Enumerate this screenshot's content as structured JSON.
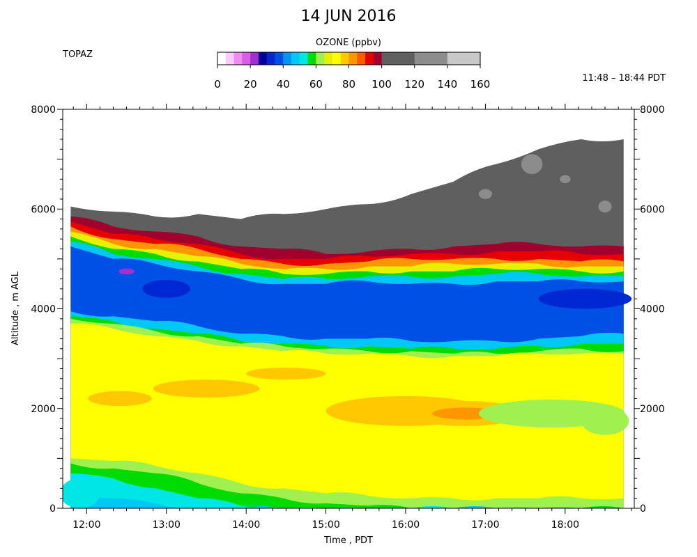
{
  "chart_data": {
    "type": "heatmap",
    "title": "14 JUN 2016",
    "instrument": "TOPAZ",
    "time_range": "11:48 – 18:44 PDT",
    "colorbar": {
      "label": "OZONE (ppbv)",
      "ticks": [
        "0",
        "20",
        "40",
        "60",
        "80",
        "100",
        "120",
        "140",
        "160"
      ],
      "range": [
        0,
        160
      ],
      "segments": [
        {
          "from": 0,
          "to": 5,
          "color": "#ffffff"
        },
        {
          "from": 5,
          "to": 10,
          "color": "#ffc8ff"
        },
        {
          "from": 10,
          "to": 15,
          "color": "#f08cf0"
        },
        {
          "from": 15,
          "to": 20,
          "color": "#d75fe6"
        },
        {
          "from": 20,
          "to": 25,
          "color": "#a030d0"
        },
        {
          "from": 25,
          "to": 30,
          "color": "#00009b"
        },
        {
          "from": 30,
          "to": 35,
          "color": "#0028d2"
        },
        {
          "from": 35,
          "to": 40,
          "color": "#0050e6"
        },
        {
          "from": 40,
          "to": 45,
          "color": "#0096f0"
        },
        {
          "from": 45,
          "to": 50,
          "color": "#00c8f5"
        },
        {
          "from": 50,
          "to": 55,
          "color": "#00e6e6"
        },
        {
          "from": 55,
          "to": 60,
          "color": "#00dc00"
        },
        {
          "from": 60,
          "to": 65,
          "color": "#a0f050"
        },
        {
          "from": 65,
          "to": 70,
          "color": "#e6f000"
        },
        {
          "from": 70,
          "to": 75,
          "color": "#ffff00"
        },
        {
          "from": 75,
          "to": 80,
          "color": "#ffc800"
        },
        {
          "from": 80,
          "to": 85,
          "color": "#ff9600"
        },
        {
          "from": 85,
          "to": 90,
          "color": "#ff5a00"
        },
        {
          "from": 90,
          "to": 95,
          "color": "#e60000"
        },
        {
          "from": 95,
          "to": 100,
          "color": "#a0002d"
        },
        {
          "from": 100,
          "to": 120,
          "color": "#5f5f5f"
        },
        {
          "from": 120,
          "to": 140,
          "color": "#8c8c8c"
        },
        {
          "from": 140,
          "to": 160,
          "color": "#c8c8c8"
        }
      ]
    },
    "xlabel": "Time , PDT",
    "ylabel": "Altitude , m AGL",
    "xlim": [
      "11:42",
      "18:52"
    ],
    "ylim": [
      0,
      8000
    ],
    "xticks": [
      "12:00",
      "13:00",
      "14:00",
      "15:00",
      "16:00",
      "17:00",
      "18:00"
    ],
    "yticks_left": [
      "0",
      "2000",
      "4000",
      "6000",
      "8000"
    ],
    "yticks_right": [
      "0",
      "2000",
      "4000",
      "6000",
      "8000"
    ],
    "data_span": [
      "11:48",
      "18:44"
    ],
    "grid": false,
    "layers": [
      {
        "ozone_ppbv": 100,
        "top_m": [
          6050,
          5950,
          5850,
          5900,
          5800,
          5900,
          6000,
          6100,
          6300,
          6550,
          6900,
          7200,
          7400,
          7400
        ]
      },
      {
        "ozone_ppbv": 95,
        "top_m": [
          5850,
          5650,
          5550,
          5450,
          5250,
          5200,
          5100,
          5150,
          5200,
          5250,
          5300,
          5300,
          5250,
          5250
        ]
      },
      {
        "ozone_ppbv": 90,
        "top_m": [
          5750,
          5500,
          5400,
          5300,
          5100,
          5000,
          5000,
          5050,
          5100,
          5100,
          5150,
          5150,
          5100,
          5100
        ]
      },
      {
        "ozone_ppbv": 80,
        "top_m": [
          5650,
          5400,
          5300,
          5200,
          5000,
          4900,
          4900,
          4950,
          5000,
          5000,
          5000,
          5000,
          4950,
          4950
        ]
      },
      {
        "ozone_ppbv": 65,
        "top_m": [
          5550,
          5300,
          5200,
          5050,
          4900,
          4800,
          4800,
          4850,
          4850,
          4900,
          4900,
          4900,
          4850,
          4850
        ]
      },
      {
        "ozone_ppbv": 55,
        "top_m": [
          5450,
          5200,
          5100,
          4950,
          4800,
          4700,
          4700,
          4750,
          4750,
          4750,
          4800,
          4800,
          4750,
          4750
        ]
      },
      {
        "ozone_ppbv": 45,
        "top_m": [
          5350,
          5100,
          5000,
          4850,
          4700,
          4600,
          4600,
          4650,
          4650,
          4650,
          4700,
          4700,
          4650,
          4650
        ]
      },
      {
        "ozone_ppbv": 35,
        "top_m": [
          5250,
          5000,
          4900,
          4750,
          4600,
          4500,
          4500,
          4550,
          4500,
          4500,
          4550,
          4550,
          4550,
          4550
        ]
      },
      {
        "ozone_ppbv": 45,
        "top_m": [
          3950,
          3850,
          3750,
          3650,
          3500,
          3450,
          3400,
          3400,
          3350,
          3350,
          3350,
          3400,
          3450,
          3500
        ]
      },
      {
        "ozone_ppbv": 55,
        "top_m": [
          3850,
          3750,
          3600,
          3500,
          3350,
          3300,
          3250,
          3250,
          3200,
          3200,
          3200,
          3250,
          3300,
          3300
        ]
      },
      {
        "ozone_ppbv": 60,
        "top_m": [
          3800,
          3700,
          3550,
          3450,
          3300,
          3250,
          3200,
          3150,
          3150,
          3100,
          3100,
          3150,
          3200,
          3150
        ]
      },
      {
        "ozone_ppbv": 70,
        "top_m": [
          3700,
          3600,
          3450,
          3350,
          3250,
          3150,
          3100,
          3100,
          3050,
          3050,
          3050,
          3100,
          3100,
          3100
        ]
      },
      {
        "ozone_ppbv": 60,
        "top_m": [
          1000,
          950,
          850,
          700,
          500,
          400,
          300,
          250,
          200,
          200,
          200,
          200,
          200,
          200
        ]
      },
      {
        "ozone_ppbv": 55,
        "top_m": [
          900,
          800,
          700,
          500,
          300,
          200,
          100,
          50,
          0,
          0,
          0,
          0,
          0,
          0
        ]
      },
      {
        "ozone_ppbv": 50,
        "top_m": [
          700,
          600,
          400,
          200,
          50,
          0,
          0,
          0,
          0,
          0,
          0,
          0,
          0,
          0
        ]
      },
      {
        "ozone_ppbv": 45,
        "top_m": [
          300,
          200,
          100,
          0,
          0,
          0,
          0,
          0,
          0,
          0,
          0,
          0,
          0,
          0
        ]
      }
    ],
    "layer_times": [
      "11:48",
      "12:20",
      "12:52",
      "13:24",
      "13:56",
      "14:28",
      "15:00",
      "15:32",
      "16:04",
      "16:36",
      "17:08",
      "17:40",
      "18:12",
      "18:44"
    ],
    "blobs": [
      {
        "t": "12:25",
        "alt_m": 2200,
        "rt_min": 24,
        "ralt_m": 150,
        "ozone_ppbv": 75
      },
      {
        "t": "13:30",
        "alt_m": 2400,
        "rt_min": 40,
        "ralt_m": 180,
        "ozone_ppbv": 75
      },
      {
        "t": "14:30",
        "alt_m": 2700,
        "rt_min": 30,
        "ralt_m": 120,
        "ozone_ppbv": 75
      },
      {
        "t": "16:00",
        "alt_m": 1950,
        "rt_min": 60,
        "ralt_m": 300,
        "ozone_ppbv": 75
      },
      {
        "t": "16:45",
        "alt_m": 1900,
        "rt_min": 45,
        "ralt_m": 250,
        "ozone_ppbv": 75
      },
      {
        "t": "16:45",
        "alt_m": 1900,
        "rt_min": 25,
        "ralt_m": 120,
        "ozone_ppbv": 80
      },
      {
        "t": "17:50",
        "alt_m": 1900,
        "rt_min": 55,
        "ralt_m": 280,
        "ozone_ppbv": 60
      },
      {
        "t": "18:30",
        "alt_m": 1750,
        "rt_min": 18,
        "ralt_m": 280,
        "ozone_ppbv": 60
      },
      {
        "t": "12:30",
        "alt_m": 4750,
        "rt_min": 6,
        "ralt_m": 60,
        "ozone_ppbv": 20
      },
      {
        "t": "13:00",
        "alt_m": 4400,
        "rt_min": 18,
        "ralt_m": 180,
        "ozone_ppbv": 30
      },
      {
        "t": "18:15",
        "alt_m": 4200,
        "rt_min": 35,
        "ralt_m": 200,
        "ozone_ppbv": 30
      },
      {
        "t": "17:35",
        "alt_m": 6900,
        "rt_min": 8,
        "ralt_m": 200,
        "ozone_ppbv": 120
      },
      {
        "t": "17:00",
        "alt_m": 6300,
        "rt_min": 5,
        "ralt_m": 100,
        "ozone_ppbv": 120
      },
      {
        "t": "18:30",
        "alt_m": 6050,
        "rt_min": 5,
        "ralt_m": 120,
        "ozone_ppbv": 120
      },
      {
        "t": "18:00",
        "alt_m": 6600,
        "rt_min": 4,
        "ralt_m": 80,
        "ozone_ppbv": 120
      },
      {
        "t": "11:55",
        "alt_m": 300,
        "rt_min": 15,
        "ralt_m": 300,
        "ozone_ppbv": 50
      }
    ]
  }
}
